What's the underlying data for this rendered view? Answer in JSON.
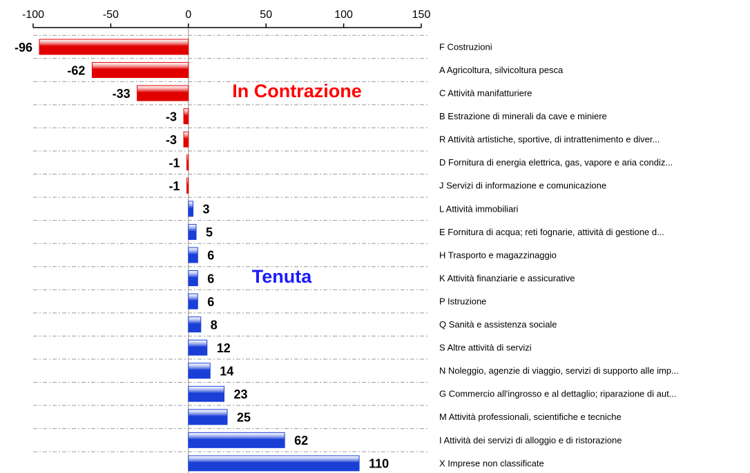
{
  "chart_data": {
    "type": "hbar",
    "categories": [
      "F Costruzioni",
      "A Agricoltura, silvicoltura pesca",
      "C Attività manifatturiere",
      "B Estrazione di minerali da cave e miniere",
      "R Attività artistiche, sportive, di intrattenimento e diver...",
      "D Fornitura di energia elettrica, gas, vapore e aria condiz...",
      "J Servizi di informazione e comunicazione",
      "L Attività immobiliari",
      "E Fornitura di acqua; reti fognarie, attività di gestione d...",
      "H Trasporto e magazzinaggio",
      "K Attività finanziarie e assicurative",
      "P Istruzione",
      "Q Sanità e assistenza sociale",
      "S Altre attività di servizi",
      "N Noleggio, agenzie di viaggio, servizi di supporto alle imp...",
      "G Commercio all'ingrosso e al dettaglio; riparazione di aut...",
      "M Attività professionali, scientifiche e tecniche",
      "I Attività dei servizi di alloggio e di ristorazione",
      "X Imprese non classificate"
    ],
    "values": [
      -96,
      -62,
      -33,
      -3,
      -3,
      -1,
      -1,
      3,
      5,
      6,
      6,
      6,
      8,
      12,
      14,
      23,
      25,
      62,
      110
    ],
    "negative_color": "#e00000",
    "positive_color": "#1a3fd6",
    "xlim": [
      -100,
      150
    ],
    "xticks": [
      -100,
      -50,
      0,
      50,
      100,
      150
    ],
    "grid": true,
    "annotations": [
      {
        "text": "In Contrazione",
        "color": "#ff0000"
      },
      {
        "text": "Tenuta",
        "color": "#1a1aff"
      }
    ]
  }
}
